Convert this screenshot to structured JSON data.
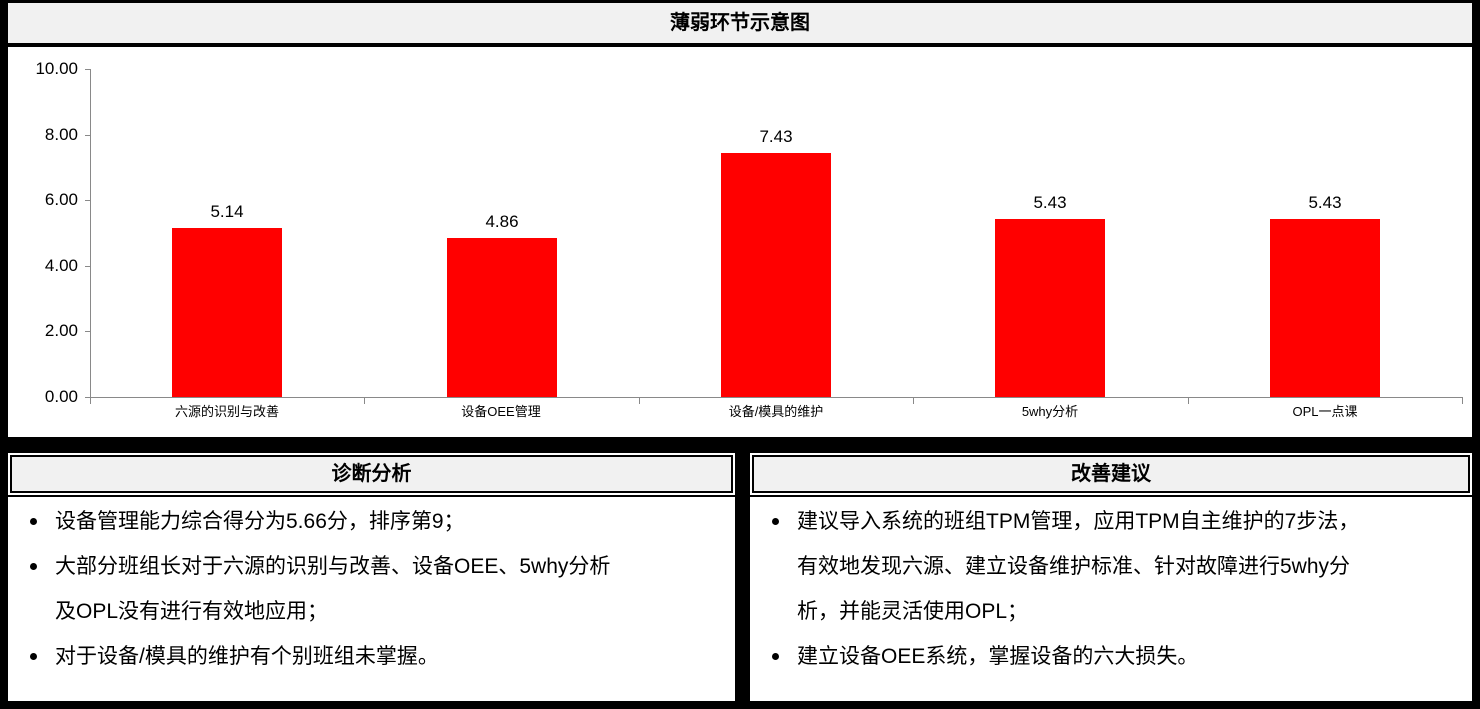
{
  "title": "薄弱环节示意图",
  "colors": {
    "bar": "#FF0000",
    "axis": "#898989",
    "header_bg": "#F1F1F1",
    "frame": "#000000"
  },
  "chart_data": {
    "type": "bar",
    "title": "薄弱环节示意图",
    "categories": [
      "六源的识别与改善",
      "设备OEE管理",
      "设备/模具的维护",
      "5why分析",
      "OPL一点课"
    ],
    "values": [
      5.14,
      4.86,
      7.43,
      5.43,
      5.43
    ],
    "data_labels": [
      "5.14",
      "4.86",
      "7.43",
      "5.43",
      "5.43"
    ],
    "xlabel": "",
    "ylabel": "",
    "ylim": [
      0,
      10
    ],
    "ytick_step": 2,
    "ytick_labels": [
      "0.00",
      "2.00",
      "4.00",
      "6.00",
      "8.00",
      "10.00"
    ],
    "grid": false,
    "legend_position": "none",
    "bar_color": "#FF0000"
  },
  "analysis": {
    "header": "诊断分析",
    "bullets": [
      {
        "lines": [
          "设备管理能力综合得分为5.66分，排序第9；"
        ]
      },
      {
        "lines": [
          "大部分班组长对于六源的识别与改善、设备OEE、5why分析",
          "及OPL没有进行有效地应用；"
        ]
      },
      {
        "lines": [
          "对于设备/模具的维护有个别班组未掌握。"
        ]
      }
    ]
  },
  "suggestions": {
    "header": "改善建议",
    "bullets": [
      {
        "lines": [
          "建议导入系统的班组TPM管理，应用TPM自主维护的7步法，",
          "有效地发现六源、建立设备维护标准、针对故障进行5why分",
          "析，并能灵活使用OPL；"
        ]
      },
      {
        "lines": [
          "建立设备OEE系统，掌握设备的六大损失。"
        ]
      }
    ]
  }
}
